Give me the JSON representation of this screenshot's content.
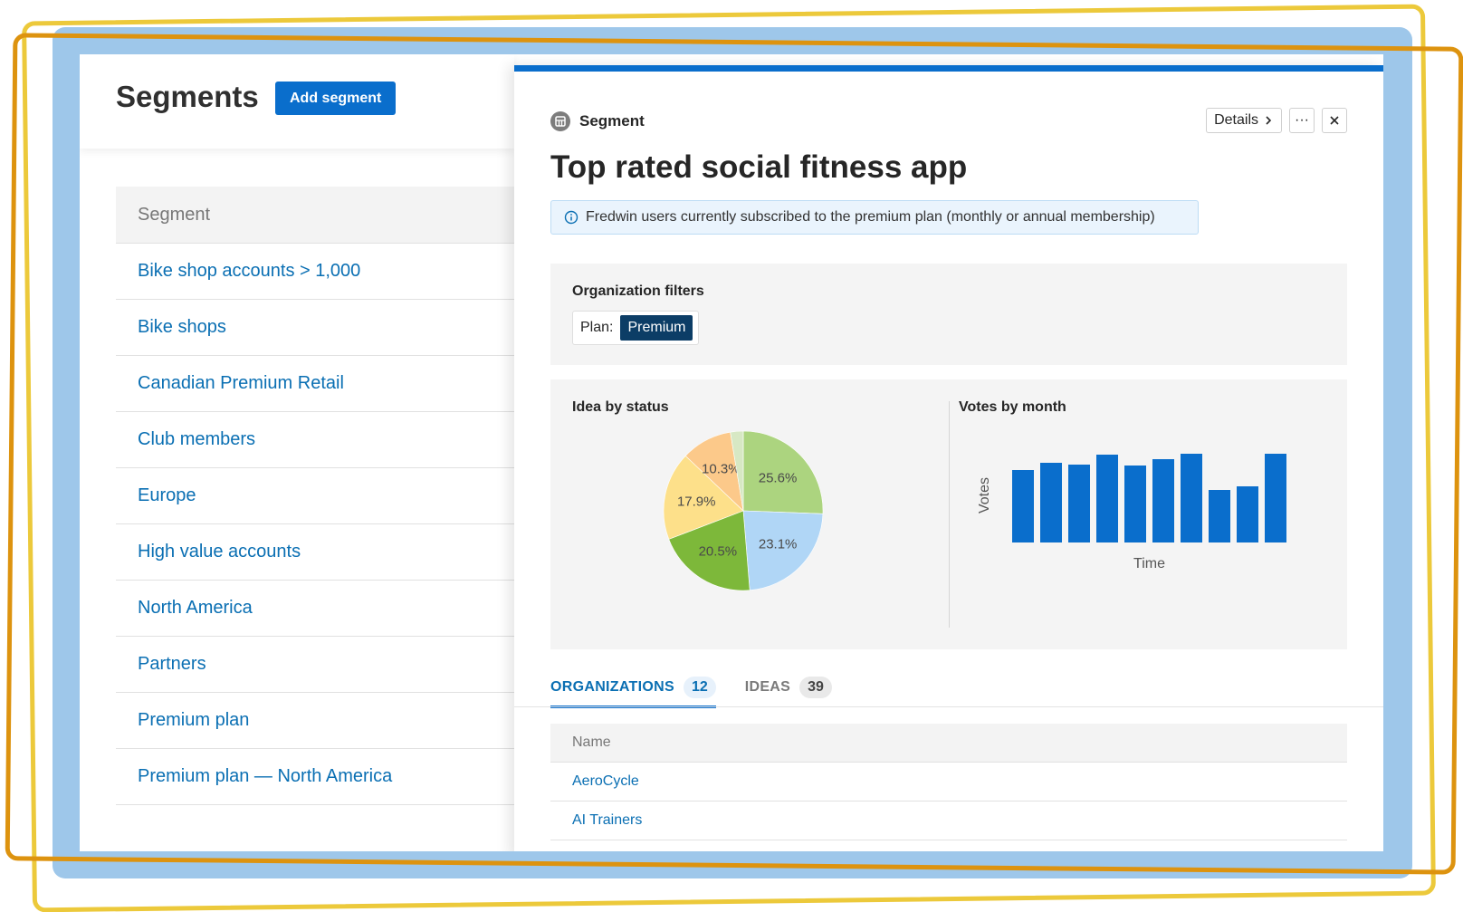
{
  "page": {
    "title": "Segments",
    "add_button": "Add segment",
    "list_header": "Segment",
    "segments": [
      {
        "label": "Bike shop accounts > 1,000"
      },
      {
        "label": "Bike shops"
      },
      {
        "label": "Canadian Premium Retail"
      },
      {
        "label": "Club members"
      },
      {
        "label": "Europe"
      },
      {
        "label": "High value accounts"
      },
      {
        "label": "North America"
      },
      {
        "label": "Partners"
      },
      {
        "label": "Premium plan"
      },
      {
        "label": "Premium plan — North America"
      }
    ]
  },
  "drawer": {
    "type_label": "Segment",
    "details_button": "Details",
    "more_button": "···",
    "close_button": "×",
    "title": "Top rated social fitness app",
    "description": "Fredwin users currently subscribed to the premium plan (monthly or annual membership)",
    "filters": {
      "title": "Organization filters",
      "chip_key": "Plan:",
      "chip_value": "Premium"
    },
    "tabs": [
      {
        "label": "ORGANIZATIONS",
        "count": "12",
        "active": true
      },
      {
        "label": "IDEAS",
        "count": "39",
        "active": false
      }
    ],
    "table_header": "Name",
    "organizations": [
      {
        "name": "AeroCycle"
      },
      {
        "name": "AI Trainers"
      }
    ]
  },
  "colors": {
    "accent": "#0a6ecc",
    "link": "#0a6fb3",
    "chip_bg": "#0c3d66",
    "frame_blue": "#9ec7ea",
    "frame_yellow": "#ecc93b",
    "frame_orange": "#dd930f"
  },
  "icons": {
    "segment": "segment-icon",
    "info": "info-icon",
    "details_chevron": "chevron-right-icon",
    "close": "close-icon"
  },
  "chart_data": [
    {
      "type": "pie",
      "title": "Idea by status",
      "slices": [
        {
          "value": 25.6,
          "label": "25.6%",
          "color": "#acd47f"
        },
        {
          "value": 23.1,
          "label": "23.1%",
          "color": "#b0d6f6"
        },
        {
          "value": 20.5,
          "label": "20.5%",
          "color": "#7db83a"
        },
        {
          "value": 17.9,
          "label": "17.9%",
          "color": "#fde08a"
        },
        {
          "value": 10.3,
          "label": "10.3%",
          "color": "#fcc98a"
        },
        {
          "value": 2.6,
          "label": "",
          "color": "#d7e8c4"
        }
      ]
    },
    {
      "type": "bar",
      "title": "Votes by month",
      "xlabel": "Time",
      "ylabel": "Votes",
      "ylim": [
        0,
        100
      ],
      "color": "#0a6ecc",
      "values": [
        80,
        88,
        86,
        97,
        85,
        92,
        98,
        58,
        62,
        98
      ]
    }
  ]
}
